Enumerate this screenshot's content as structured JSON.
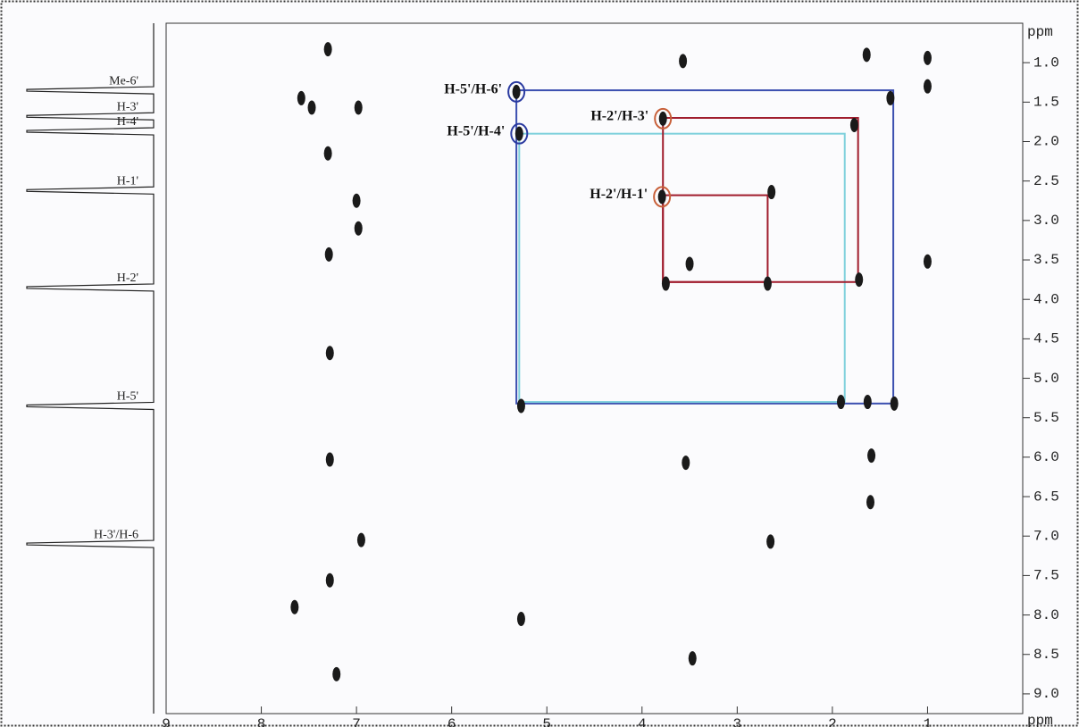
{
  "chart_data": {
    "type": "scatter",
    "x_label": "ppm",
    "y_label": "ppm",
    "xlim": [
      9,
      0
    ],
    "ylim": [
      0.5,
      9.25
    ],
    "xticks": [
      9,
      8,
      7,
      6,
      5,
      4,
      3,
      2,
      1
    ],
    "yticks": [
      {
        "value": 1,
        "label": "1.0"
      },
      1.5,
      {
        "value": 2,
        "label": "2.0"
      },
      2.5,
      {
        "value": 3,
        "label": "3.0"
      },
      3.5,
      {
        "value": 4,
        "label": "4.0"
      },
      4.5,
      {
        "value": 5,
        "label": "5.0"
      },
      5.5,
      {
        "value": 6,
        "label": "6.0"
      },
      6.5,
      {
        "value": 7,
        "label": "7.0"
      },
      7.5,
      {
        "value": 8,
        "label": "8.0"
      },
      8.5,
      {
        "value": 9,
        "label": "9.0"
      }
    ],
    "color": "#1a1a1a",
    "x": [
      7.3,
      3.57,
      1.64,
      1.0,
      7.58,
      7.47,
      6.98,
      7.3,
      1.0,
      1.77,
      1.39,
      5.32,
      5.29,
      3.78,
      3.79,
      2.64,
      7.0,
      6.98,
      7.29,
      1.0,
      3.5,
      3.75,
      2.68,
      1.72,
      7.28,
      5.27,
      1.91,
      1.63,
      1.35,
      7.28,
      3.54,
      1.59,
      1.6,
      6.95,
      2.65,
      7.28,
      7.65,
      5.27,
      3.47,
      7.21
    ],
    "y": [
      0.83,
      0.98,
      0.9,
      0.94,
      1.45,
      1.57,
      1.57,
      2.15,
      1.3,
      1.79,
      1.45,
      1.37,
      1.9,
      1.71,
      2.7,
      2.64,
      2.75,
      3.1,
      3.43,
      3.52,
      3.55,
      3.8,
      3.8,
      3.75,
      4.68,
      5.35,
      5.3,
      5.3,
      5.32,
      6.03,
      6.07,
      5.98,
      6.57,
      7.05,
      7.07,
      7.56,
      7.9,
      8.05,
      8.55,
      8.75
    ],
    "boxes": [
      {
        "color": "#3b4fb0",
        "x": [
          5.32,
          1.36
        ],
        "y": [
          1.35,
          5.32
        ]
      },
      {
        "color": "#7fd0dc",
        "x": [
          5.29,
          1.87
        ],
        "y": [
          1.9,
          5.3
        ]
      },
      {
        "color": "#a01c2c",
        "x": [
          3.78,
          1.73
        ],
        "y": [
          1.7,
          3.78
        ]
      },
      {
        "color": "#a01c2c",
        "x": [
          3.78,
          2.68
        ],
        "y": [
          2.68,
          3.78
        ]
      }
    ],
    "annotations": [
      {
        "text": "H-5'/H-6'",
        "x": 5.32,
        "y": 1.37,
        "color": "#2a3aa0"
      },
      {
        "text": "H-5'/H-4'",
        "x": 5.29,
        "y": 1.9,
        "color": "#2a3aa0"
      },
      {
        "text": "H-2'/H-3'",
        "x": 3.78,
        "y": 1.71,
        "color": "#c8603a"
      },
      {
        "text": "H-2'/H-1'",
        "x": 3.79,
        "y": 2.7,
        "color": "#c8603a"
      }
    ],
    "projection_labels": [
      {
        "text": "Me-6'",
        "y": 1.35
      },
      {
        "text": "H-3'",
        "y": 1.68
      },
      {
        "text": "H-4'",
        "y": 1.87
      },
      {
        "text": "H-1'",
        "y": 2.62
      },
      {
        "text": "H-2'",
        "y": 3.85
      },
      {
        "text": "H-5'",
        "y": 5.35
      },
      {
        "text": "H-3'/H-6",
        "y": 7.1
      }
    ]
  }
}
